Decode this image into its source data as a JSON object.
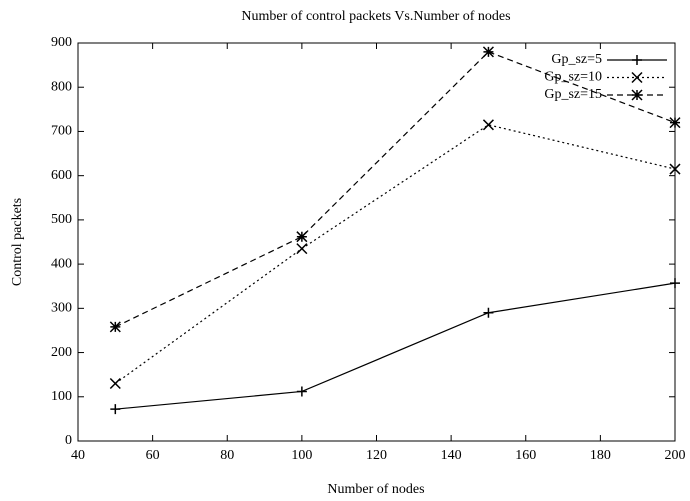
{
  "chart_data": {
    "type": "line",
    "title": "Number of control packets Vs.Number of nodes",
    "x_label": "Number of nodes",
    "y_label": "Control packets",
    "x": [
      50,
      100,
      150,
      200
    ],
    "series": [
      {
        "name": "Gp_sz=5",
        "color": "#000000",
        "dash": "solid",
        "marker": "plus",
        "values": [
          72,
          112,
          290,
          357
        ]
      },
      {
        "name": "Gp_sz=10",
        "color": "#000000",
        "dash": "dotted",
        "marker": "cross",
        "values": [
          130,
          435,
          715,
          615
        ]
      },
      {
        "name": "Gp_sz=15",
        "color": "#000000",
        "dash": "dashed",
        "marker": "star",
        "values": [
          258,
          462,
          880,
          720
        ]
      }
    ],
    "xlim": [
      40,
      200
    ],
    "xticks": [
      40,
      60,
      80,
      100,
      120,
      140,
      160,
      180,
      200
    ],
    "ylim": [
      0,
      900
    ],
    "yticks": [
      0,
      100,
      200,
      300,
      400,
      500,
      600,
      700,
      800,
      900
    ],
    "legend": "top-right"
  }
}
